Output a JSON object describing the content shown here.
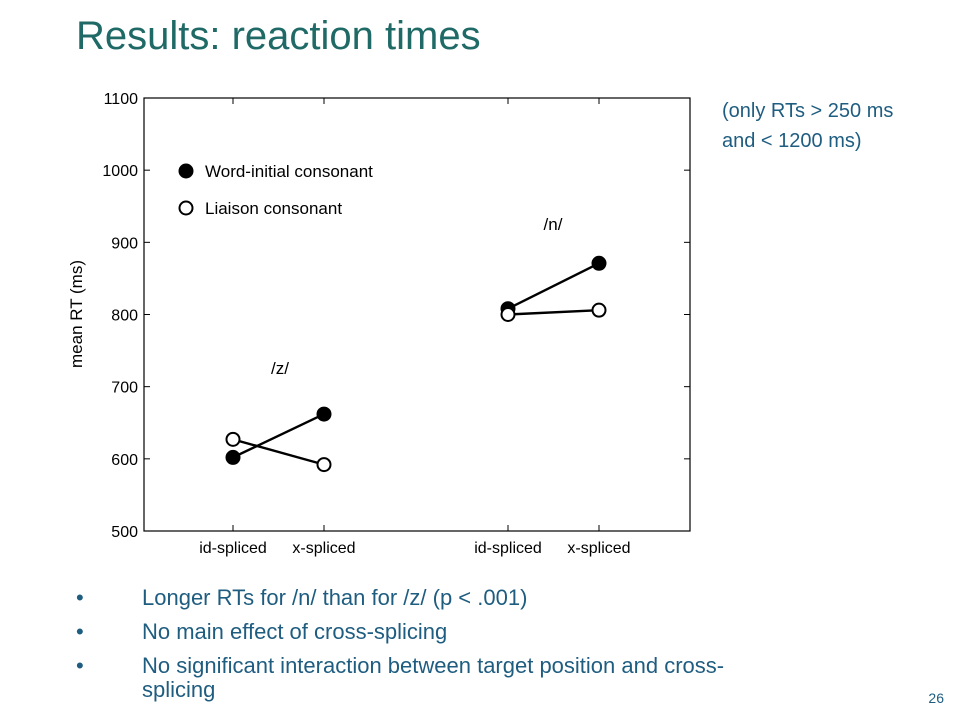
{
  "slide": {
    "title": "Results: reaction times",
    "note_lines": [
      "(only RTs > 250 ms",
      "and < 1200 ms)"
    ],
    "bullets": [
      "Longer RTs for /n/ than for /z/ (p < .001)",
      "No main effect of cross-splicing",
      "No significant interaction between target position and cross-splicing"
    ],
    "bullet_glyph": "•",
    "page_number": "26"
  },
  "chart_data": {
    "type": "line",
    "ylabel": "mean RT (ms)",
    "ylim": [
      500,
      1100
    ],
    "yticks": [
      500,
      600,
      700,
      800,
      900,
      1000,
      1100
    ],
    "groups": [
      {
        "label": "/z/",
        "categories": [
          "id-spliced",
          "x-spliced"
        ]
      },
      {
        "label": "/n/",
        "categories": [
          "id-spliced",
          "x-spliced"
        ]
      }
    ],
    "series": [
      {
        "name": "Word-initial consonant",
        "marker": "filled",
        "values": [
          [
            602,
            662
          ],
          [
            808,
            871
          ]
        ]
      },
      {
        "name": "Liaison consonant",
        "marker": "open",
        "values": [
          [
            627,
            592
          ],
          [
            800,
            806
          ]
        ]
      }
    ],
    "grid": false,
    "legend_position": "top-left"
  }
}
